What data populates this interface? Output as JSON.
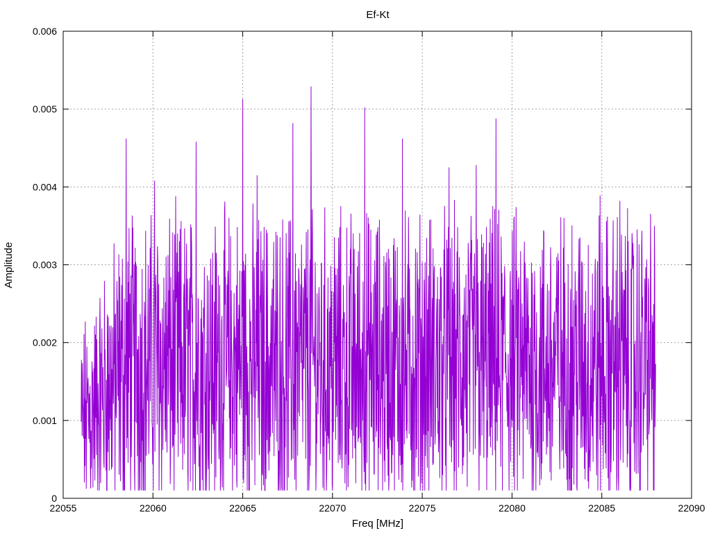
{
  "chart_data": {
    "type": "line",
    "title": "Ef-Kt",
    "xlabel": "Freq [MHz]",
    "ylabel": "Amplitude",
    "xlim": [
      22055,
      22090
    ],
    "ylim": [
      0,
      0.006
    ],
    "x_ticks": [
      "22055",
      "22060",
      "22065",
      "22070",
      "22075",
      "22080",
      "22085",
      "22090"
    ],
    "y_ticks": [
      "0",
      "0.001",
      "0.002",
      "0.003",
      "0.004",
      "0.005",
      "0.006"
    ],
    "grid": true,
    "series": [
      {
        "color": "#9400d3",
        "x_start": 22056,
        "x_end": 22088,
        "approx_mean": 0.0017,
        "approx_min": 0.0001,
        "approx_max": 0.0053,
        "peaks": [
          {
            "x": 22058.5,
            "y": 0.00462
          },
          {
            "x": 22060.1,
            "y": 0.00408
          },
          {
            "x": 22062.4,
            "y": 0.00458
          },
          {
            "x": 22065.0,
            "y": 0.00513
          },
          {
            "x": 22065.8,
            "y": 0.00415
          },
          {
            "x": 22067.8,
            "y": 0.00482
          },
          {
            "x": 22068.8,
            "y": 0.00529
          },
          {
            "x": 22071.8,
            "y": 0.00502
          },
          {
            "x": 22073.9,
            "y": 0.00462
          },
          {
            "x": 22076.5,
            "y": 0.00425
          },
          {
            "x": 22078.0,
            "y": 0.00428
          },
          {
            "x": 22079.1,
            "y": 0.00488
          },
          {
            "x": 22084.9,
            "y": 0.00389
          },
          {
            "x": 22086.0,
            "y": 0.00382
          }
        ]
      }
    ]
  }
}
